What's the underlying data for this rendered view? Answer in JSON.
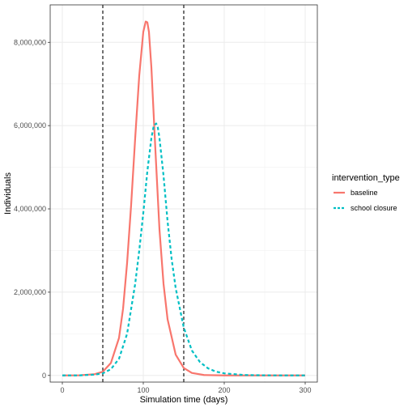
{
  "chart_data": {
    "type": "line",
    "xlabel": "Simulation time (days)",
    "ylabel": "Individuals",
    "xlim": [
      -15,
      315
    ],
    "ylim": [
      -160000,
      8900000
    ],
    "x_ticks": [
      {
        "value": 0,
        "label": "0"
      },
      {
        "value": 100,
        "label": "100"
      },
      {
        "value": 200,
        "label": "200"
      },
      {
        "value": 300,
        "label": "300"
      }
    ],
    "y_ticks": [
      {
        "value": 0,
        "label": "0"
      },
      {
        "value": 2000000,
        "label": "2,000,000"
      },
      {
        "value": 4000000,
        "label": "4,000,000"
      },
      {
        "value": 6000000,
        "label": "6,000,000"
      },
      {
        "value": 8000000,
        "label": "8,000,000"
      }
    ],
    "grid": true,
    "legend": {
      "title": "intervention_type",
      "position": "right"
    },
    "vlines": [
      {
        "x": 50,
        "color": "#000000",
        "style": "dashed"
      },
      {
        "x": 150,
        "color": "#000000",
        "style": "dashed"
      }
    ],
    "series": [
      {
        "name": "baseline",
        "color": "#F8766D",
        "style": "solid",
        "x": [
          0,
          20,
          40,
          50,
          60,
          70,
          75,
          80,
          85,
          90,
          95,
          100,
          103,
          105,
          107,
          110,
          115,
          120,
          125,
          130,
          140,
          150,
          160,
          175,
          200,
          250,
          300
        ],
        "y": [
          0,
          2000,
          30000,
          90000,
          300000,
          900000,
          1600000,
          2700000,
          4100000,
          5700000,
          7200000,
          8250000,
          8500000,
          8480000,
          8250000,
          7400000,
          5400000,
          3500000,
          2200000,
          1350000,
          500000,
          180000,
          60000,
          10000,
          0,
          0,
          0
        ]
      },
      {
        "name": "school closure",
        "color": "#00BFC4",
        "style": "dashed",
        "x": [
          0,
          20,
          40,
          50,
          60,
          70,
          80,
          90,
          95,
          100,
          105,
          110,
          113,
          116,
          118,
          120,
          125,
          130,
          135,
          140,
          150,
          160,
          170,
          180,
          190,
          200,
          225,
          250,
          275,
          300
        ],
        "y": [
          0,
          1000,
          20000,
          50000,
          150000,
          400000,
          1000000,
          2200000,
          3000000,
          3900000,
          4900000,
          5700000,
          6000000,
          6050000,
          5950000,
          5700000,
          4800000,
          3700000,
          2800000,
          2100000,
          1150000,
          600000,
          320000,
          170000,
          90000,
          50000,
          10000,
          3000,
          0,
          0
        ]
      }
    ]
  }
}
